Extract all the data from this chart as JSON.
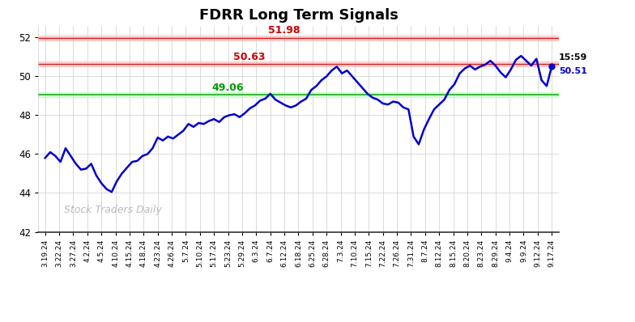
{
  "title": "FDRR Long Term Signals",
  "title_fontsize": 13,
  "title_fontweight": "bold",
  "watermark": "Stock Traders Daily",
  "line_color": "#0000cc",
  "line_width": 1.8,
  "resistance1": 51.98,
  "resistance2": 50.63,
  "support": 49.06,
  "resistance1_color": "#cc0000",
  "resistance2_color": "#cc0000",
  "support_color": "#009900",
  "resistance1_band_color": "#ffbbbb",
  "resistance2_band_color": "#ffbbbb",
  "support_band_color": "#bbffbb",
  "last_time": "15:59",
  "last_price": 50.51,
  "ylim": [
    42.0,
    52.6
  ],
  "yticks": [
    42,
    44,
    46,
    48,
    50,
    52
  ],
  "background_color": "#ffffff",
  "grid_color": "#cccccc",
  "x_labels": [
    "3.19.24",
    "3.22.24",
    "3.27.24",
    "4.2.24",
    "4.5.24",
    "4.10.24",
    "4.15.24",
    "4.18.24",
    "4.23.24",
    "4.26.24",
    "5.7.24",
    "5.10.24",
    "5.17.24",
    "5.23.24",
    "5.29.24",
    "6.3.24",
    "6.7.24",
    "6.12.24",
    "6.18.24",
    "6.25.24",
    "6.28.24",
    "7.3.24",
    "7.10.24",
    "7.15.24",
    "7.22.24",
    "7.26.24",
    "7.31.24",
    "8.7.24",
    "8.12.24",
    "8.15.24",
    "8.20.24",
    "8.23.24",
    "8.29.24",
    "9.4.24",
    "9.9.24",
    "9.12.24",
    "9.17.24"
  ],
  "y_values": [
    45.8,
    46.1,
    45.9,
    45.6,
    46.3,
    45.9,
    45.5,
    45.2,
    45.25,
    45.5,
    44.9,
    44.5,
    44.2,
    44.05,
    44.6,
    45.0,
    45.3,
    45.6,
    45.65,
    45.9,
    46.0,
    46.3,
    46.85,
    46.7,
    46.9,
    46.8,
    47.0,
    47.2,
    47.55,
    47.4,
    47.6,
    47.55,
    47.7,
    47.8,
    47.65,
    47.9,
    48.0,
    48.05,
    47.9,
    48.1,
    48.35,
    48.5,
    48.75,
    48.85,
    49.1,
    48.8,
    48.65,
    48.5,
    48.4,
    48.5,
    48.7,
    48.85,
    49.3,
    49.5,
    49.8,
    50.0,
    50.3,
    50.5,
    50.15,
    50.3,
    50.0,
    49.7,
    49.4,
    49.1,
    48.9,
    48.8,
    48.6,
    48.55,
    48.7,
    48.65,
    48.4,
    48.3,
    46.9,
    46.5,
    47.25,
    47.8,
    48.3,
    48.55,
    48.8,
    49.3,
    49.6,
    50.15,
    50.4,
    50.55,
    50.35,
    50.5,
    50.6,
    50.8,
    50.55,
    50.2,
    49.95,
    50.35,
    50.85,
    51.05,
    50.8,
    50.55,
    50.9,
    49.8,
    49.5,
    50.51
  ]
}
